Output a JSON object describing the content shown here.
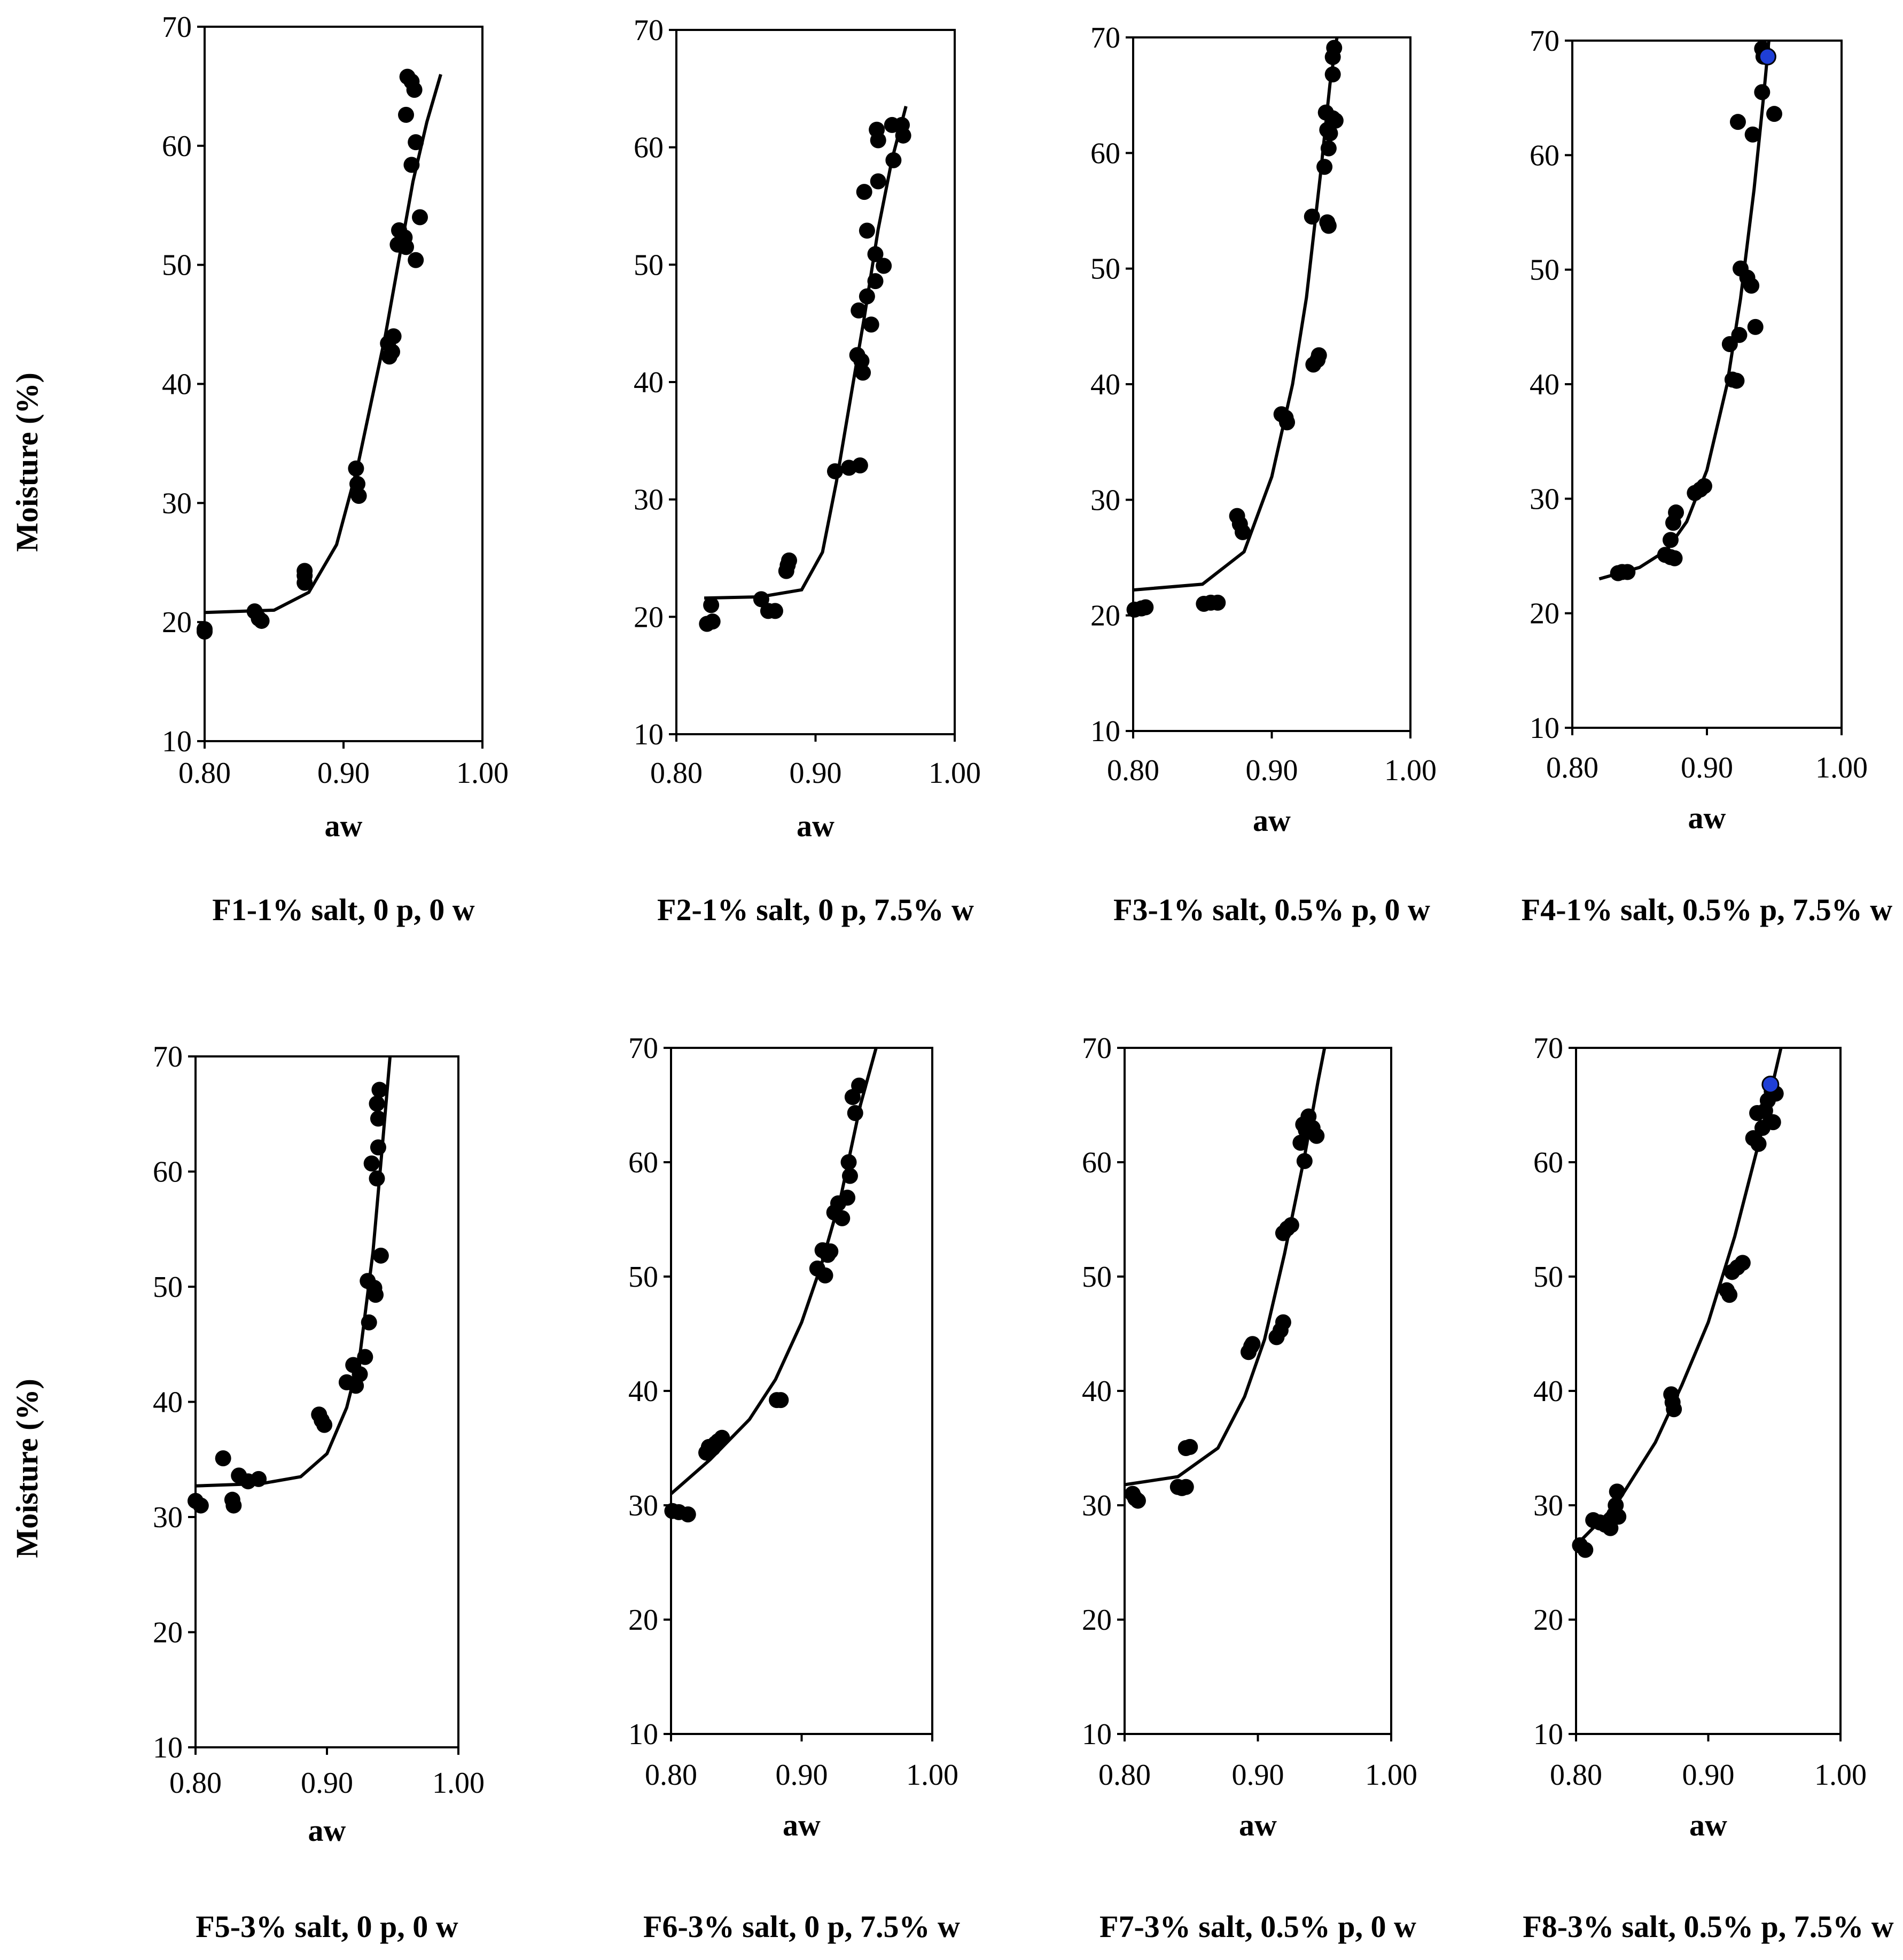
{
  "figure": {
    "y_axis_title": "Moisture (%)"
  },
  "chart_data": [
    {
      "type": "scatter",
      "caption": "F1-1% salt, 0 p, 0 w",
      "xlabel": "aw",
      "ylabel": "Moisture (%)",
      "xlim": [
        0.8,
        1.0
      ],
      "ylim": [
        10,
        70
      ],
      "xticks": [
        "0.80",
        "0.90",
        "1.00"
      ],
      "yticks": [
        "10",
        "20",
        "30",
        "40",
        "50",
        "60",
        "70"
      ],
      "points": [
        [
          0.8,
          19.4
        ],
        [
          0.8,
          19.2
        ],
        [
          0.836,
          20.9
        ],
        [
          0.839,
          20.3
        ],
        [
          0.841,
          20.1
        ],
        [
          0.872,
          24.3
        ],
        [
          0.872,
          23.9
        ],
        [
          0.872,
          23.3
        ],
        [
          0.909,
          32.9
        ],
        [
          0.91,
          31.6
        ],
        [
          0.911,
          30.6
        ],
        [
          0.932,
          43.4
        ],
        [
          0.933,
          42.3
        ],
        [
          0.935,
          42.7
        ],
        [
          0.936,
          44.0
        ],
        [
          0.939,
          51.7
        ],
        [
          0.94,
          52.9
        ],
        [
          0.944,
          52.3
        ],
        [
          0.945,
          51.5
        ],
        [
          0.945,
          62.6
        ],
        [
          0.946,
          65.8
        ],
        [
          0.949,
          65.4
        ],
        [
          0.949,
          58.4
        ],
        [
          0.951,
          64.7
        ],
        [
          0.952,
          60.3
        ],
        [
          0.952,
          50.4
        ],
        [
          0.955,
          54.0
        ]
      ],
      "highlight_points": [],
      "fit": [
        [
          0.8,
          20.8
        ],
        [
          0.85,
          21.0
        ],
        [
          0.875,
          22.5
        ],
        [
          0.895,
          26.5
        ],
        [
          0.91,
          33.0
        ],
        [
          0.92,
          38.5
        ],
        [
          0.93,
          44.0
        ],
        [
          0.94,
          50.5
        ],
        [
          0.95,
          57.0
        ],
        [
          0.96,
          62.0
        ],
        [
          0.97,
          66.0
        ]
      ]
    },
    {
      "type": "scatter",
      "caption": "F2-1% salt, 0 p, 7.5% w",
      "xlabel": "aw",
      "ylabel": "Moisture (%)",
      "xlim": [
        0.8,
        1.0
      ],
      "ylim": [
        10,
        70
      ],
      "xticks": [
        "0.80",
        "0.90",
        "1.00"
      ],
      "yticks": [
        "10",
        "20",
        "30",
        "40",
        "50",
        "60",
        "70"
      ],
      "points": [
        [
          0.822,
          19.4
        ],
        [
          0.825,
          21.0
        ],
        [
          0.826,
          19.6
        ],
        [
          0.861,
          21.5
        ],
        [
          0.866,
          20.5
        ],
        [
          0.871,
          20.5
        ],
        [
          0.879,
          23.9
        ],
        [
          0.88,
          24.4
        ],
        [
          0.881,
          24.8
        ],
        [
          0.914,
          32.4
        ],
        [
          0.924,
          32.7
        ],
        [
          0.93,
          42.3
        ],
        [
          0.931,
          46.1
        ],
        [
          0.932,
          32.9
        ],
        [
          0.933,
          41.8
        ],
        [
          0.934,
          40.8
        ],
        [
          0.935,
          56.2
        ],
        [
          0.937,
          52.9
        ],
        [
          0.937,
          47.3
        ],
        [
          0.94,
          44.9
        ],
        [
          0.943,
          48.6
        ],
        [
          0.943,
          50.9
        ],
        [
          0.944,
          61.5
        ],
        [
          0.945,
          57.1
        ],
        [
          0.945,
          60.6
        ],
        [
          0.949,
          49.9
        ],
        [
          0.955,
          61.9
        ],
        [
          0.956,
          58.9
        ],
        [
          0.962,
          61.9
        ],
        [
          0.963,
          61.0
        ]
      ],
      "highlight_points": [],
      "fit": [
        [
          0.82,
          21.6
        ],
        [
          0.86,
          21.7
        ],
        [
          0.89,
          22.3
        ],
        [
          0.905,
          25.5
        ],
        [
          0.915,
          31.5
        ],
        [
          0.925,
          38.5
        ],
        [
          0.935,
          45.5
        ],
        [
          0.945,
          53.0
        ],
        [
          0.955,
          59.0
        ],
        [
          0.965,
          63.5
        ]
      ]
    },
    {
      "type": "scatter",
      "caption": "F3-1% salt, 0.5% p, 0 w",
      "xlabel": "aw",
      "ylabel": "Moisture (%)",
      "xlim": [
        0.8,
        1.0
      ],
      "ylim": [
        10,
        70
      ],
      "xticks": [
        "0.80",
        "0.90",
        "1.00"
      ],
      "yticks": [
        "10",
        "20",
        "30",
        "40",
        "50",
        "60",
        "70"
      ],
      "points": [
        [
          0.801,
          20.5
        ],
        [
          0.806,
          20.6
        ],
        [
          0.809,
          20.7
        ],
        [
          0.851,
          21.0
        ],
        [
          0.856,
          21.1
        ],
        [
          0.861,
          21.1
        ],
        [
          0.875,
          28.6
        ],
        [
          0.877,
          27.9
        ],
        [
          0.879,
          27.2
        ],
        [
          0.907,
          37.4
        ],
        [
          0.91,
          37.1
        ],
        [
          0.911,
          36.7
        ],
        [
          0.929,
          54.5
        ],
        [
          0.93,
          41.7
        ],
        [
          0.933,
          42.1
        ],
        [
          0.934,
          42.5
        ],
        [
          0.938,
          58.8
        ],
        [
          0.939,
          63.5
        ],
        [
          0.94,
          62.0
        ],
        [
          0.94,
          54.0
        ],
        [
          0.941,
          60.4
        ],
        [
          0.941,
          53.7
        ],
        [
          0.942,
          61.7
        ],
        [
          0.944,
          63.0
        ],
        [
          0.944,
          66.8
        ],
        [
          0.944,
          68.3
        ],
        [
          0.945,
          69.1
        ],
        [
          0.946,
          62.8
        ]
      ],
      "highlight_points": [],
      "fit": [
        [
          0.8,
          22.2
        ],
        [
          0.85,
          22.7
        ],
        [
          0.88,
          25.5
        ],
        [
          0.9,
          32.0
        ],
        [
          0.915,
          40.0
        ],
        [
          0.925,
          47.5
        ],
        [
          0.935,
          58.0
        ],
        [
          0.942,
          66.0
        ],
        [
          0.947,
          70.0
        ]
      ]
    },
    {
      "type": "scatter",
      "caption": "F4-1% salt, 0.5% p, 7.5% w",
      "xlabel": "aw",
      "ylabel": "Moisture (%)",
      "xlim": [
        0.8,
        1.0
      ],
      "ylim": [
        10,
        70
      ],
      "xticks": [
        "0.80",
        "0.90",
        "1.00"
      ],
      "yticks": [
        "10",
        "20",
        "30",
        "40",
        "50",
        "60",
        "70"
      ],
      "points": [
        [
          0.834,
          23.5
        ],
        [
          0.837,
          23.6
        ],
        [
          0.841,
          23.6
        ],
        [
          0.869,
          25.1
        ],
        [
          0.873,
          24.9
        ],
        [
          0.876,
          24.8
        ],
        [
          0.873,
          26.4
        ],
        [
          0.875,
          27.9
        ],
        [
          0.877,
          28.8
        ],
        [
          0.891,
          30.5
        ],
        [
          0.895,
          30.8
        ],
        [
          0.898,
          31.1
        ],
        [
          0.917,
          43.5
        ],
        [
          0.919,
          40.4
        ],
        [
          0.922,
          40.3
        ],
        [
          0.924,
          44.3
        ],
        [
          0.925,
          50.1
        ],
        [
          0.93,
          49.3
        ],
        [
          0.933,
          48.6
        ],
        [
          0.934,
          61.8
        ],
        [
          0.936,
          45.0
        ],
        [
          0.923,
          62.9
        ],
        [
          0.941,
          65.5
        ],
        [
          0.941,
          69.3
        ],
        [
          0.942,
          68.6
        ],
        [
          0.95,
          63.6
        ]
      ],
      "highlight_points": [
        [
          0.945,
          68.6
        ]
      ],
      "fit": [
        [
          0.82,
          23.0
        ],
        [
          0.85,
          24.0
        ],
        [
          0.87,
          25.5
        ],
        [
          0.885,
          28.0
        ],
        [
          0.9,
          32.5
        ],
        [
          0.915,
          40.0
        ],
        [
          0.925,
          47.5
        ],
        [
          0.935,
          57.0
        ],
        [
          0.942,
          65.0
        ],
        [
          0.946,
          70.0
        ]
      ]
    },
    {
      "type": "scatter",
      "caption": "F5-3% salt, 0 p, 0 w",
      "xlabel": "aw",
      "ylabel": "Moisture (%)",
      "xlim": [
        0.8,
        1.0
      ],
      "ylim": [
        10,
        70
      ],
      "xticks": [
        "0.80",
        "0.90",
        "1.00"
      ],
      "yticks": [
        "10",
        "20",
        "30",
        "40",
        "50",
        "60",
        "70"
      ],
      "points": [
        [
          0.8,
          31.4
        ],
        [
          0.804,
          31.0
        ],
        [
          0.821,
          35.1
        ],
        [
          0.828,
          31.5
        ],
        [
          0.829,
          31.0
        ],
        [
          0.833,
          33.6
        ],
        [
          0.84,
          33.1
        ],
        [
          0.848,
          33.3
        ],
        [
          0.894,
          38.9
        ],
        [
          0.896,
          38.4
        ],
        [
          0.898,
          38.0
        ],
        [
          0.915,
          41.7
        ],
        [
          0.92,
          43.2
        ],
        [
          0.922,
          41.4
        ],
        [
          0.925,
          42.4
        ],
        [
          0.929,
          43.9
        ],
        [
          0.931,
          50.5
        ],
        [
          0.932,
          46.9
        ],
        [
          0.934,
          60.7
        ],
        [
          0.936,
          49.9
        ],
        [
          0.937,
          49.3
        ],
        [
          0.938,
          59.4
        ],
        [
          0.938,
          65.9
        ],
        [
          0.939,
          64.6
        ],
        [
          0.939,
          62.1
        ],
        [
          0.94,
          67.1
        ],
        [
          0.941,
          52.7
        ]
      ],
      "highlight_points": [],
      "fit": [
        [
          0.8,
          32.7
        ],
        [
          0.85,
          32.9
        ],
        [
          0.88,
          33.5
        ],
        [
          0.9,
          35.5
        ],
        [
          0.915,
          39.5
        ],
        [
          0.925,
          44.0
        ],
        [
          0.935,
          53.0
        ],
        [
          0.942,
          62.0
        ],
        [
          0.948,
          70.0
        ]
      ]
    },
    {
      "type": "scatter",
      "caption": "F6-3% salt, 0 p, 7.5% w",
      "xlabel": "aw",
      "ylabel": "Moisture (%)",
      "xlim": [
        0.8,
        1.0
      ],
      "ylim": [
        10,
        70
      ],
      "xticks": [
        "0.80",
        "0.90",
        "1.00"
      ],
      "yticks": [
        "10",
        "20",
        "30",
        "40",
        "50",
        "60",
        "70"
      ],
      "points": [
        [
          0.801,
          29.5
        ],
        [
          0.806,
          29.4
        ],
        [
          0.813,
          29.2
        ],
        [
          0.827,
          34.6
        ],
        [
          0.829,
          35.1
        ],
        [
          0.832,
          35.0
        ],
        [
          0.834,
          35.4
        ],
        [
          0.836,
          35.6
        ],
        [
          0.839,
          35.9
        ],
        [
          0.881,
          39.2
        ],
        [
          0.884,
          39.2
        ],
        [
          0.912,
          50.7
        ],
        [
          0.916,
          52.3
        ],
        [
          0.918,
          50.1
        ],
        [
          0.92,
          51.9
        ],
        [
          0.922,
          52.2
        ],
        [
          0.925,
          55.6
        ],
        [
          0.928,
          56.4
        ],
        [
          0.931,
          55.1
        ],
        [
          0.935,
          56.9
        ],
        [
          0.936,
          60.0
        ],
        [
          0.937,
          58.8
        ],
        [
          0.939,
          65.7
        ],
        [
          0.941,
          64.3
        ],
        [
          0.944,
          66.7
        ]
      ],
      "highlight_points": [],
      "fit": [
        [
          0.8,
          31.0
        ],
        [
          0.83,
          34.0
        ],
        [
          0.86,
          37.5
        ],
        [
          0.88,
          41.0
        ],
        [
          0.9,
          46.0
        ],
        [
          0.915,
          51.0
        ],
        [
          0.93,
          57.0
        ],
        [
          0.945,
          65.0
        ],
        [
          0.957,
          70.0
        ]
      ]
    },
    {
      "type": "scatter",
      "caption": "F7-3% salt, 0.5% p, 0 w",
      "xlabel": "aw",
      "ylabel": "Moisture (%)",
      "xlim": [
        0.8,
        1.0
      ],
      "ylim": [
        10,
        70
      ],
      "xticks": [
        "0.80",
        "0.90",
        "1.00"
      ],
      "yticks": [
        "10",
        "20",
        "30",
        "40",
        "50",
        "60",
        "70"
      ],
      "points": [
        [
          0.806,
          31.0
        ],
        [
          0.808,
          30.6
        ],
        [
          0.81,
          30.4
        ],
        [
          0.84,
          31.6
        ],
        [
          0.843,
          31.5
        ],
        [
          0.846,
          31.6
        ],
        [
          0.846,
          35.0
        ],
        [
          0.849,
          35.1
        ],
        [
          0.893,
          43.4
        ],
        [
          0.895,
          43.9
        ],
        [
          0.896,
          44.1
        ],
        [
          0.914,
          44.7
        ],
        [
          0.917,
          45.3
        ],
        [
          0.919,
          46.0
        ],
        [
          0.919,
          53.8
        ],
        [
          0.922,
          54.2
        ],
        [
          0.925,
          54.5
        ],
        [
          0.932,
          61.7
        ],
        [
          0.934,
          63.3
        ],
        [
          0.935,
          60.1
        ],
        [
          0.936,
          62.8
        ],
        [
          0.938,
          64.0
        ],
        [
          0.941,
          63.0
        ],
        [
          0.944,
          62.3
        ]
      ],
      "highlight_points": [],
      "fit": [
        [
          0.8,
          31.8
        ],
        [
          0.84,
          32.5
        ],
        [
          0.87,
          35.0
        ],
        [
          0.89,
          39.5
        ],
        [
          0.905,
          44.5
        ],
        [
          0.92,
          52.0
        ],
        [
          0.935,
          60.5
        ],
        [
          0.945,
          67.0
        ],
        [
          0.95,
          70.0
        ]
      ]
    },
    {
      "type": "scatter",
      "caption": "F8-3% salt, 0.5% p, 7.5% w",
      "xlabel": "aw",
      "ylabel": "Moisture (%)",
      "xlim": [
        0.8,
        1.0
      ],
      "ylim": [
        10,
        70
      ],
      "xticks": [
        "0.80",
        "0.90",
        "1.00"
      ],
      "yticks": [
        "10",
        "20",
        "30",
        "40",
        "50",
        "60",
        "70"
      ],
      "points": [
        [
          0.803,
          26.5
        ],
        [
          0.807,
          26.1
        ],
        [
          0.813,
          28.7
        ],
        [
          0.818,
          28.5
        ],
        [
          0.822,
          28.3
        ],
        [
          0.826,
          28.0
        ],
        [
          0.829,
          29.2
        ],
        [
          0.83,
          30.0
        ],
        [
          0.831,
          31.2
        ],
        [
          0.832,
          29.0
        ],
        [
          0.872,
          39.7
        ],
        [
          0.873,
          39.0
        ],
        [
          0.874,
          38.4
        ],
        [
          0.914,
          48.8
        ],
        [
          0.916,
          48.4
        ],
        [
          0.918,
          50.4
        ],
        [
          0.922,
          50.8
        ],
        [
          0.926,
          51.2
        ],
        [
          0.934,
          62.1
        ],
        [
          0.937,
          64.3
        ],
        [
          0.938,
          61.6
        ],
        [
          0.941,
          63.0
        ],
        [
          0.943,
          64.5
        ],
        [
          0.945,
          65.4
        ],
        [
          0.948,
          66.2
        ],
        [
          0.949,
          63.5
        ],
        [
          0.951,
          66.0
        ]
      ],
      "highlight_points": [
        [
          0.947,
          66.8
        ]
      ],
      "fit": [
        [
          0.8,
          26.5
        ],
        [
          0.83,
          30.0
        ],
        [
          0.86,
          35.5
        ],
        [
          0.88,
          40.5
        ],
        [
          0.9,
          46.0
        ],
        [
          0.92,
          53.5
        ],
        [
          0.94,
          62.5
        ],
        [
          0.955,
          70.0
        ]
      ]
    }
  ]
}
